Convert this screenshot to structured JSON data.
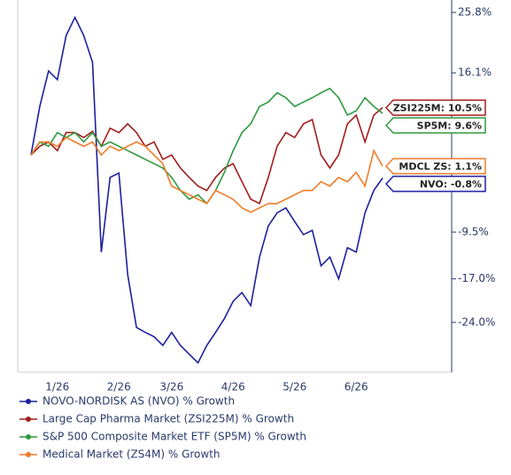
{
  "chart_data": {
    "type": "line",
    "categories": [
      null,
      null,
      null,
      "1/26",
      null,
      null,
      null,
      null,
      null,
      null,
      "2/26",
      null,
      null,
      null,
      null,
      null,
      "3/26",
      null,
      null,
      null,
      null,
      null,
      null,
      "4/26",
      null,
      null,
      null,
      null,
      null,
      null,
      "5/26",
      null,
      null,
      null,
      null,
      null,
      null,
      "6/26",
      null,
      null,
      null
    ],
    "ylim": [
      -32,
      27.8
    ],
    "yticks": [
      {
        "value": 25.8,
        "label": "25.8%"
      },
      {
        "value": 16.1,
        "label": "16.1%"
      },
      {
        "value": -9.5,
        "label": "-9.5%"
      },
      {
        "value": -17.0,
        "label": "-17.0%"
      },
      {
        "value": -24.0,
        "label": "-24.0%"
      }
    ],
    "series": [
      {
        "name": "NOVO-NORDISK AS (NVO) % Growth",
        "color": "#1f1f9e",
        "end_label": "NVO: -0.8%",
        "values": [
          2.9,
          10.7,
          16.4,
          15,
          22.1,
          25,
          22.1,
          17.8,
          -12.7,
          -0.7,
          0,
          -16.3,
          -24.8,
          -25.6,
          -26.3,
          -27.7,
          -25.6,
          -27.7,
          -29.1,
          -30.5,
          -27.7,
          -25.6,
          -23.4,
          -20.6,
          -19.2,
          -21.3,
          -13.5,
          -8.5,
          -6.4,
          -5.6,
          -7.8,
          -9.9,
          -9.2,
          -14.9,
          -13.5,
          -17,
          -12,
          -12.7,
          -6.4,
          -2.8,
          -0.8
        ]
      },
      {
        "name": "Large Cap Pharma Market (ZSI225M) % Growth",
        "color": "#a31c1c",
        "end_label": "ZSI225M: 10.5%",
        "values": [
          2.9,
          4.3,
          5.0,
          3.6,
          6.5,
          6.5,
          5.7,
          6.7,
          4.3,
          7.2,
          6.5,
          7.9,
          6.5,
          4.3,
          5.0,
          2.2,
          2.9,
          0.8,
          -0.7,
          -2.1,
          -2.8,
          -0.7,
          0.8,
          1.5,
          -1.4,
          -4.2,
          -4.9,
          -0.7,
          4.3,
          6.5,
          5.7,
          7.9,
          8.6,
          2.9,
          0.8,
          2.9,
          7.9,
          9.3,
          5.0,
          9.3,
          10.5
        ]
      },
      {
        "name": "S&P 500 Composite Market ETF (SP5M) % Growth",
        "color": "#2e9a3f",
        "end_label": "SP5M: 9.6%",
        "values": [
          2.9,
          5.0,
          4.3,
          6.5,
          5.7,
          6.5,
          5.0,
          6.5,
          4.3,
          5.0,
          4.3,
          3.6,
          2.9,
          2.2,
          1.5,
          0.8,
          -0.7,
          -2.8,
          -4.2,
          -3.5,
          -4.9,
          -2.8,
          0.1,
          3.6,
          6.5,
          7.9,
          10.7,
          11.4,
          12.9,
          12.1,
          10.7,
          11.4,
          12.1,
          12.9,
          13.6,
          12.1,
          9.3,
          10.0,
          12.1,
          10.7,
          9.6
        ]
      },
      {
        "name": "Medical Market (ZS4M) % Growth",
        "color": "#f07c28",
        "end_label": "MDCL ZS: 1.1%",
        "values": [
          2.9,
          5.0,
          5.0,
          4.3,
          5.7,
          5.0,
          4.3,
          5.0,
          2.9,
          4.3,
          3.6,
          4.3,
          5.0,
          4.3,
          2.9,
          1.5,
          -2.1,
          -2.8,
          -3.5,
          -4.2,
          -4.9,
          -2.8,
          -3.5,
          -4.2,
          -5.6,
          -6.3,
          -5.6,
          -4.9,
          -4.9,
          -4.2,
          -3.5,
          -2.8,
          -2.8,
          -1.4,
          -2.1,
          -0.7,
          -1.4,
          0.1,
          -2.1,
          3.6,
          1.1
        ]
      }
    ]
  }
}
